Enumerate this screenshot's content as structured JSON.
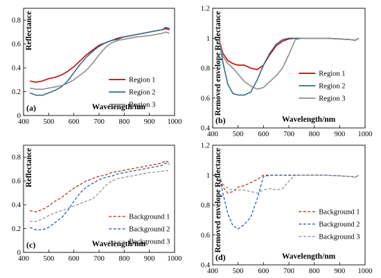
{
  "chart_data": [
    {
      "type": "line",
      "panel_label": "(a)",
      "xlabel": "Wavelength/nm",
      "ylabel": "Reflectance",
      "xlim": [
        400,
        1000
      ],
      "ylim": [
        0,
        0.9
      ],
      "xticks": [
        400,
        500,
        600,
        700,
        800,
        900,
        1000
      ],
      "yticks": [
        0,
        0.2,
        0.4,
        0.6,
        0.8
      ],
      "ytick_labels": [
        "0",
        "0.2",
        "0.4",
        "0.6",
        "0.8"
      ],
      "grid": false,
      "legend_placement": "bottom-right",
      "series": [
        {
          "name": "Region 1",
          "color": "#cc0000",
          "dash": "solid",
          "x": [
            425,
            450,
            475,
            500,
            525,
            550,
            575,
            600,
            625,
            650,
            675,
            700,
            725,
            750,
            775,
            800,
            850,
            900,
            950,
            965,
            980
          ],
          "y": [
            0.29,
            0.28,
            0.29,
            0.31,
            0.32,
            0.34,
            0.37,
            0.41,
            0.46,
            0.51,
            0.55,
            0.59,
            0.61,
            0.63,
            0.65,
            0.66,
            0.68,
            0.7,
            0.72,
            0.73,
            0.72
          ]
        },
        {
          "name": "Region 2",
          "color": "#2e6f86",
          "dash": "solid",
          "x": [
            425,
            450,
            475,
            500,
            525,
            550,
            575,
            600,
            625,
            650,
            675,
            700,
            725,
            750,
            775,
            800,
            850,
            900,
            950,
            965,
            980
          ],
          "y": [
            0.19,
            0.17,
            0.17,
            0.19,
            0.21,
            0.24,
            0.29,
            0.36,
            0.43,
            0.49,
            0.54,
            0.58,
            0.61,
            0.63,
            0.64,
            0.66,
            0.68,
            0.7,
            0.72,
            0.74,
            0.73
          ]
        },
        {
          "name": "Region 3",
          "color": "#8c8c8c",
          "dash": "solid",
          "x": [
            425,
            450,
            475,
            500,
            525,
            550,
            575,
            600,
            625,
            650,
            675,
            700,
            725,
            750,
            775,
            800,
            850,
            900,
            950,
            965,
            980
          ],
          "y": [
            0.23,
            0.22,
            0.22,
            0.23,
            0.24,
            0.25,
            0.27,
            0.3,
            0.34,
            0.38,
            0.44,
            0.51,
            0.57,
            0.61,
            0.63,
            0.64,
            0.66,
            0.67,
            0.69,
            0.7,
            0.69
          ]
        }
      ]
    },
    {
      "type": "line",
      "panel_label": "(b)",
      "xlabel": "Wavelength/nm",
      "ylabel": "Removed envelope Reflectance",
      "xlim": [
        400,
        1000
      ],
      "ylim": [
        0.4,
        1.2
      ],
      "xticks": [
        400,
        500,
        600,
        700,
        800,
        900,
        1000
      ],
      "yticks": [
        0.4,
        0.6,
        0.8,
        1.0,
        1.2
      ],
      "ytick_labels": [
        "0.4",
        "0.6",
        "0.8",
        "1",
        "1.2"
      ],
      "grid": false,
      "legend_placement": "bottom-right",
      "series": [
        {
          "name": "Region 1",
          "color": "#cc0000",
          "dash": "solid",
          "x": [
            425,
            440,
            460,
            480,
            500,
            525,
            550,
            575,
            600,
            625,
            650,
            675,
            700,
            725,
            750,
            800,
            850,
            900,
            950,
            960,
            975
          ],
          "y": [
            1.0,
            0.9,
            0.85,
            0.83,
            0.82,
            0.82,
            0.8,
            0.79,
            0.82,
            0.89,
            0.95,
            0.98,
            0.995,
            1.0,
            1.0,
            1.0,
            1.0,
            0.995,
            0.99,
            0.985,
            1.0
          ]
        },
        {
          "name": "Region 2",
          "color": "#2e6f86",
          "dash": "solid",
          "x": [
            425,
            440,
            460,
            480,
            500,
            525,
            550,
            575,
            600,
            625,
            650,
            675,
            700,
            725,
            750,
            800,
            850,
            900,
            950,
            960,
            975
          ],
          "y": [
            1.0,
            0.84,
            0.69,
            0.63,
            0.62,
            0.62,
            0.64,
            0.72,
            0.82,
            0.9,
            0.96,
            0.99,
            1.0,
            1.0,
            1.0,
            1.0,
            1.0,
            0.995,
            0.99,
            0.985,
            1.0
          ]
        },
        {
          "name": "Region 3",
          "color": "#8c8c8c",
          "dash": "solid",
          "x": [
            425,
            440,
            460,
            480,
            500,
            525,
            550,
            575,
            600,
            625,
            650,
            675,
            700,
            725,
            750,
            800,
            850,
            900,
            950,
            960,
            975
          ],
          "y": [
            1.0,
            0.88,
            0.83,
            0.8,
            0.76,
            0.71,
            0.68,
            0.66,
            0.67,
            0.71,
            0.75,
            0.8,
            0.89,
            0.99,
            1.0,
            1.0,
            1.0,
            0.995,
            0.99,
            0.985,
            1.0
          ]
        }
      ]
    },
    {
      "type": "line",
      "panel_label": "(c)",
      "xlabel": "Wavelength/nm",
      "ylabel": "Reflectance",
      "xlim": [
        400,
        1000
      ],
      "ylim": [
        0,
        0.9
      ],
      "xticks": [
        400,
        500,
        600,
        700,
        800,
        900,
        1000
      ],
      "yticks": [
        0,
        0.2,
        0.4,
        0.6,
        0.8
      ],
      "ytick_labels": [
        "0",
        "0.2",
        "0.4",
        "0.6",
        "0.8"
      ],
      "grid": false,
      "legend_placement": "bottom-right",
      "series": [
        {
          "name": "Background 1",
          "color": "#a52a00",
          "dash": "dashed",
          "x": [
            425,
            450,
            475,
            500,
            525,
            550,
            575,
            600,
            625,
            650,
            675,
            700,
            725,
            750,
            775,
            800,
            850,
            900,
            950,
            965,
            980
          ],
          "y": [
            0.35,
            0.34,
            0.36,
            0.39,
            0.43,
            0.46,
            0.5,
            0.54,
            0.57,
            0.6,
            0.62,
            0.64,
            0.65,
            0.67,
            0.68,
            0.69,
            0.71,
            0.73,
            0.75,
            0.77,
            0.75
          ]
        },
        {
          "name": "Background 2",
          "color": "#1f4e9a",
          "dash": "dashed",
          "x": [
            425,
            450,
            475,
            500,
            525,
            550,
            575,
            600,
            625,
            650,
            675,
            700,
            725,
            750,
            775,
            800,
            850,
            900,
            950,
            965,
            980
          ],
          "y": [
            0.21,
            0.19,
            0.19,
            0.21,
            0.25,
            0.29,
            0.35,
            0.43,
            0.5,
            0.55,
            0.58,
            0.61,
            0.63,
            0.64,
            0.66,
            0.67,
            0.69,
            0.71,
            0.73,
            0.75,
            0.74
          ]
        },
        {
          "name": "Background 3",
          "color": "#8c8c8c",
          "dash": "dashed",
          "x": [
            425,
            450,
            475,
            500,
            525,
            550,
            575,
            600,
            625,
            650,
            675,
            700,
            725,
            750,
            775,
            800,
            850,
            900,
            950,
            965,
            980
          ],
          "y": [
            0.26,
            0.26,
            0.28,
            0.31,
            0.33,
            0.35,
            0.37,
            0.39,
            0.41,
            0.43,
            0.45,
            0.5,
            0.56,
            0.6,
            0.62,
            0.63,
            0.65,
            0.67,
            0.68,
            0.69,
            0.68
          ]
        }
      ]
    },
    {
      "type": "line",
      "panel_label": "(d)",
      "xlabel": "Wavelength/nm",
      "ylabel": "Removed envelope Reflectance",
      "xlim": [
        400,
        1000
      ],
      "ylim": [
        0.4,
        1.2
      ],
      "xticks": [
        400,
        500,
        600,
        700,
        800,
        900,
        1000
      ],
      "yticks": [
        0.4,
        0.6,
        0.8,
        1.0,
        1.2
      ],
      "ytick_labels": [
        "0.4",
        "0.6",
        "0.8",
        "1",
        "1.2"
      ],
      "grid": false,
      "legend_placement": "bottom-right",
      "series": [
        {
          "name": "Background 1",
          "color": "#a52a00",
          "dash": "dashed",
          "x": [
            425,
            440,
            460,
            480,
            500,
            525,
            550,
            575,
            600,
            625,
            650,
            675,
            700,
            725,
            750,
            800,
            850,
            900,
            950,
            960,
            975
          ],
          "y": [
            1.0,
            0.92,
            0.88,
            0.89,
            0.92,
            0.93,
            0.95,
            0.97,
            1.0,
            1.0,
            1.0,
            1.0,
            1.0,
            1.0,
            1.0,
            1.0,
            1.0,
            0.995,
            0.99,
            0.985,
            1.0
          ]
        },
        {
          "name": "Background 2",
          "color": "#1f4e9a",
          "dash": "dashed",
          "x": [
            425,
            440,
            460,
            480,
            500,
            525,
            550,
            575,
            600,
            625,
            650,
            675,
            700,
            725,
            750,
            800,
            850,
            900,
            950,
            960,
            975
          ],
          "y": [
            1.0,
            0.88,
            0.74,
            0.66,
            0.64,
            0.67,
            0.72,
            0.84,
            0.99,
            1.0,
            1.0,
            1.0,
            1.0,
            1.0,
            1.0,
            1.0,
            1.0,
            0.995,
            0.99,
            0.985,
            1.0
          ]
        },
        {
          "name": "Background 3",
          "color": "#8c8c8c",
          "dash": "dashed",
          "x": [
            425,
            440,
            460,
            480,
            500,
            525,
            550,
            575,
            600,
            625,
            650,
            675,
            700,
            725,
            750,
            800,
            850,
            900,
            950,
            960,
            975
          ],
          "y": [
            1.0,
            0.94,
            0.91,
            0.9,
            0.9,
            0.9,
            0.89,
            0.88,
            0.9,
            0.91,
            0.9,
            0.91,
            0.96,
            1.0,
            1.0,
            1.0,
            1.0,
            0.995,
            0.99,
            0.985,
            1.0
          ]
        }
      ]
    }
  ]
}
